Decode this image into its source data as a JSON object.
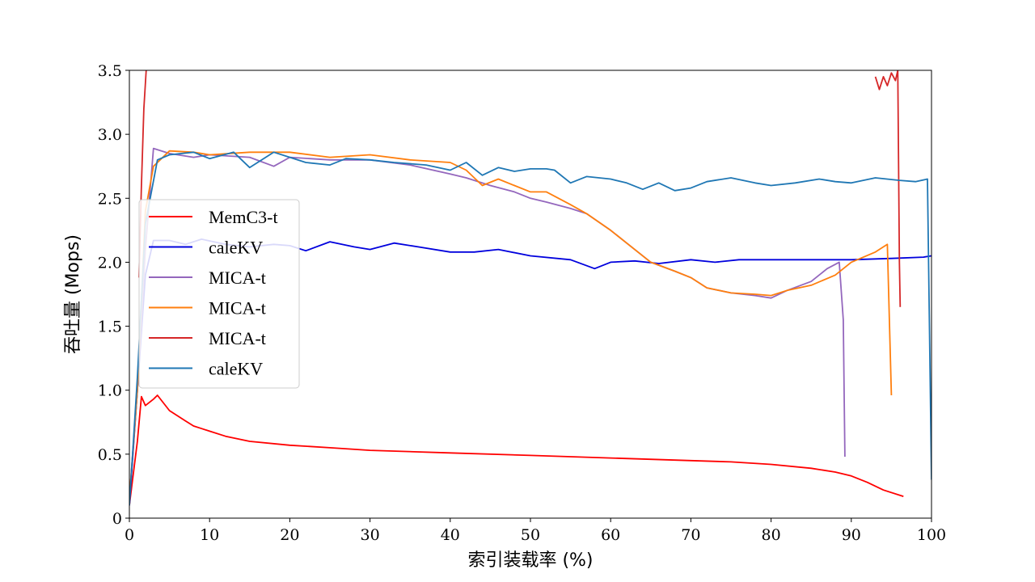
{
  "chart_data": {
    "type": "line",
    "xlabel": "索引装载率 (%)",
    "ylabel": "吞吐量 (Mops)",
    "xlim": [
      0,
      100
    ],
    "ylim": [
      0,
      3.5
    ],
    "x_ticks": [
      0,
      10,
      20,
      30,
      40,
      50,
      60,
      70,
      80,
      90,
      100
    ],
    "x_tick_labels": [
      "0",
      "10",
      "20",
      "30",
      "40",
      "50",
      "60",
      "70",
      "80",
      "90",
      "100"
    ],
    "y_ticks": [
      0,
      0.5,
      1.0,
      1.5,
      2.0,
      2.5,
      3.0,
      3.5
    ],
    "y_tick_labels": [
      "0",
      "0.5",
      "1.0",
      "1.5",
      "2.0",
      "2.5",
      "3.0",
      "3.5"
    ],
    "grid": false,
    "legend_position": "center-left",
    "series": [
      {
        "name": "MemC3-t",
        "color": "#ff0000",
        "x": [
          0,
          1,
          1.5,
          2,
          3,
          3.5,
          5,
          7,
          8,
          9,
          10,
          12,
          15,
          20,
          25,
          30,
          40,
          50,
          60,
          70,
          75,
          80,
          85,
          88,
          90,
          92,
          94,
          96.5
        ],
        "y": [
          0.1,
          0.6,
          0.95,
          0.88,
          0.93,
          0.96,
          0.84,
          0.76,
          0.72,
          0.7,
          0.68,
          0.64,
          0.6,
          0.57,
          0.55,
          0.53,
          0.51,
          0.49,
          0.47,
          0.45,
          0.44,
          0.42,
          0.39,
          0.36,
          0.33,
          0.28,
          0.22,
          0.17
        ]
      },
      {
        "name": "caleKV",
        "color": "#0000dd",
        "x": [
          0,
          1,
          2,
          3,
          5,
          7,
          9,
          12,
          15,
          18,
          20,
          22,
          25,
          28,
          30,
          33,
          36,
          40,
          43,
          46,
          50,
          55,
          58,
          60,
          63,
          66,
          70,
          73,
          76,
          80,
          85,
          90,
          95,
          99,
          100
        ],
        "y": [
          0.1,
          1.0,
          1.9,
          2.17,
          2.17,
          2.14,
          2.18,
          2.14,
          2.12,
          2.14,
          2.13,
          2.09,
          2.16,
          2.12,
          2.1,
          2.15,
          2.12,
          2.08,
          2.08,
          2.1,
          2.05,
          2.02,
          1.95,
          2.0,
          2.01,
          1.99,
          2.02,
          2.0,
          2.02,
          2.02,
          2.02,
          2.02,
          2.03,
          2.04,
          2.05
        ]
      },
      {
        "name": "MICA-t",
        "color": "#9467bd",
        "x": [
          0,
          1,
          2,
          3,
          5,
          8,
          10,
          15,
          18,
          20,
          25,
          30,
          35,
          40,
          42,
          45,
          48,
          50,
          52,
          55,
          57,
          60,
          62,
          65,
          68,
          70,
          72,
          75,
          78,
          80,
          82,
          85,
          87,
          88.5,
          89,
          89.2
        ],
        "y": [
          0.15,
          1.0,
          2.1,
          2.89,
          2.85,
          2.82,
          2.84,
          2.82,
          2.75,
          2.82,
          2.8,
          2.8,
          2.76,
          2.69,
          2.66,
          2.6,
          2.55,
          2.5,
          2.47,
          2.42,
          2.38,
          2.25,
          2.15,
          2.0,
          1.93,
          1.88,
          1.8,
          1.76,
          1.74,
          1.72,
          1.78,
          1.85,
          1.95,
          2.0,
          1.55,
          0.48
        ]
      },
      {
        "name": "MICA-t",
        "color": "#ff7f0e",
        "x": [
          0,
          1,
          2,
          3,
          5,
          8,
          10,
          15,
          20,
          25,
          30,
          35,
          40,
          42,
          44,
          46,
          48,
          50,
          52,
          55,
          57,
          60,
          62,
          65,
          68,
          70,
          72,
          75,
          78,
          80,
          82,
          85,
          88,
          90,
          93,
          94.5,
          95
        ],
        "y": [
          0.15,
          1.0,
          2.4,
          2.75,
          2.87,
          2.86,
          2.84,
          2.86,
          2.86,
          2.82,
          2.84,
          2.8,
          2.78,
          2.72,
          2.6,
          2.65,
          2.6,
          2.55,
          2.55,
          2.45,
          2.38,
          2.25,
          2.15,
          2.0,
          1.93,
          1.88,
          1.8,
          1.76,
          1.75,
          1.74,
          1.78,
          1.82,
          1.9,
          2.0,
          2.08,
          2.14,
          0.96
        ]
      },
      {
        "name": "MICA-t",
        "color": "#d62728",
        "x": [
          1.2,
          1.5,
          1.8,
          2.1
        ],
        "y": [
          1.88,
          2.6,
          3.2,
          3.5
        ],
        "x2": [
          93,
          93.5,
          94,
          94.5,
          95,
          95.5,
          95.8,
          96,
          96.1
        ],
        "y2": [
          3.45,
          3.35,
          3.45,
          3.38,
          3.48,
          3.42,
          3.5,
          2.0,
          1.65
        ]
      },
      {
        "name": "caleKV",
        "color": "#1f77b4",
        "x": [
          0,
          1,
          2,
          3.5,
          5,
          8,
          10,
          13,
          15,
          18,
          20,
          22,
          25,
          27,
          30,
          33,
          37,
          40,
          42,
          44,
          46,
          48,
          50,
          52,
          53,
          55,
          57,
          60,
          62,
          64,
          66,
          68,
          70,
          72,
          75,
          78,
          80,
          83,
          86,
          88,
          90,
          93,
          96,
          98,
          99.5,
          100
        ],
        "y": [
          0.1,
          1.1,
          2.3,
          2.8,
          2.84,
          2.86,
          2.81,
          2.86,
          2.74,
          2.86,
          2.82,
          2.78,
          2.76,
          2.81,
          2.8,
          2.78,
          2.76,
          2.72,
          2.78,
          2.68,
          2.74,
          2.71,
          2.73,
          2.73,
          2.72,
          2.62,
          2.67,
          2.65,
          2.62,
          2.57,
          2.62,
          2.56,
          2.58,
          2.63,
          2.66,
          2.62,
          2.6,
          2.62,
          2.65,
          2.63,
          2.62,
          2.66,
          2.64,
          2.63,
          2.65,
          0.3
        ]
      }
    ]
  }
}
